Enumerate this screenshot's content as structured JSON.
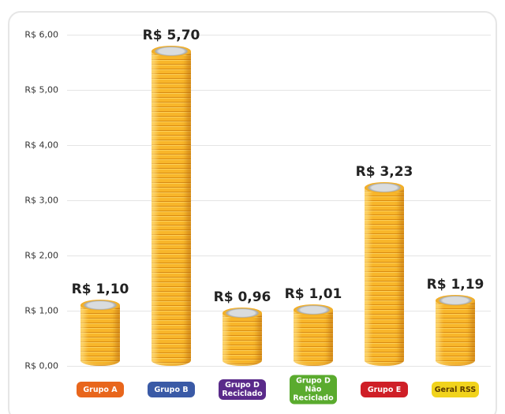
{
  "chart_data": {
    "type": "bar",
    "categories": [
      "Grupo A",
      "Grupo B",
      "Grupo D Reciclado",
      "Grupo D Não Reciclado",
      "Grupo E",
      "Geral RSS"
    ],
    "category_colors": [
      "#e8661c",
      "#3a5aa6",
      "#5a2a8a",
      "#5aab2e",
      "#cf1f27",
      "#f1d31c"
    ],
    "values": [
      1.1,
      5.7,
      0.96,
      1.01,
      3.23,
      1.19
    ],
    "value_labels": [
      "R$ 1,10",
      "R$ 5,70",
      "R$ 0,96",
      "R$ 1,01",
      "R$ 3,23",
      "R$ 1,19"
    ],
    "color": "#f4a81f",
    "ylim": [
      0,
      6.2
    ],
    "yticks": [
      {
        "value": 0,
        "label": "R$ 0,00"
      },
      {
        "value": 1,
        "label": "R$ 1,00"
      },
      {
        "value": 2,
        "label": "R$ 2,00"
      },
      {
        "value": 3,
        "label": "R$ 3,00"
      },
      {
        "value": 4,
        "label": "R$ 4,00"
      },
      {
        "value": 5,
        "label": "R$ 5,00"
      },
      {
        "value": 6,
        "label": "R$ 6,00"
      }
    ],
    "grid": true
  }
}
